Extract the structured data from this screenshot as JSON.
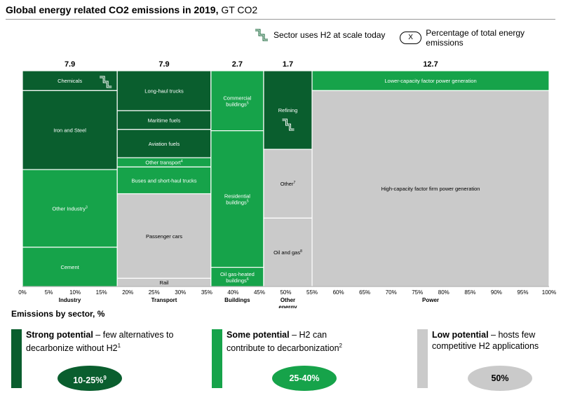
{
  "title": {
    "bold": "Global energy related CO2 emissions in 2019,",
    "rest": " GT CO2"
  },
  "legend": {
    "h2_label": "Sector uses H2 at scale today",
    "pct_symbol": "X",
    "pct_label": "Percentage of total energy emissions"
  },
  "colors": {
    "dark": "#0a5e2e",
    "mid": "#16a34a",
    "gray": "#cacaca"
  },
  "chart_data": {
    "type": "marimekko",
    "xlabel_title": "Emissions by sector, %",
    "x_ticks": [
      "0%",
      "5%",
      "10%",
      "15%",
      "20%",
      "25%",
      "30%",
      "35%",
      "40%",
      "45%",
      "50%",
      "55%",
      "60%",
      "65%",
      "70%",
      "75%",
      "80%",
      "85%",
      "90%",
      "95%",
      "100%"
    ],
    "columns": [
      {
        "name": "Industry",
        "total": "7.9",
        "x0": 0,
        "x1": 18,
        "segments": [
          {
            "label": "Chemicals",
            "share": 9.2,
            "potential": "strong",
            "h2": true
          },
          {
            "label": "Iron and Steel",
            "share": 36.6,
            "potential": "strong",
            "h2": false
          },
          {
            "label": "Other Industry",
            "sup": "3",
            "share": 36.0,
            "potential": "some",
            "h2": false
          },
          {
            "label": "Cement",
            "share": 18.2,
            "potential": "some",
            "h2": false
          }
        ]
      },
      {
        "name": "Transport",
        "total": "7.9",
        "x0": 18,
        "x1": 35.8,
        "segments": [
          {
            "label": "Long-haul trucks",
            "share": 18.5,
            "potential": "strong",
            "h2": false
          },
          {
            "label": "Maritime fuels",
            "share": 8.7,
            "potential": "strong",
            "h2": false
          },
          {
            "label": "Aviation fuels",
            "share": 13.1,
            "potential": "strong",
            "h2": false
          },
          {
            "label": "Other transport",
            "sup": "4",
            "share": 4.3,
            "potential": "some",
            "h2": false
          },
          {
            "label": "Buses and short-haul trucks",
            "share": 12.4,
            "potential": "some",
            "h2": false
          },
          {
            "label": "Passenger cars",
            "share": 39.2,
            "potential": "low",
            "h2": false
          },
          {
            "label": "Rail",
            "share": 3.8,
            "potential": "low",
            "h2": false
          }
        ]
      },
      {
        "name": "Buildings",
        "total": "2.7",
        "x0": 35.8,
        "x1": 45.8,
        "segments": [
          {
            "label": "Commercial buildings",
            "sup": "5",
            "share": 27.8,
            "potential": "some",
            "h2": false
          },
          {
            "label": "Residential buildings",
            "sup": "5",
            "share": 63.3,
            "potential": "some",
            "h2": false
          },
          {
            "label": "Oil gas-heated buildings",
            "sup": "6",
            "share": 8.9,
            "potential": "some",
            "h2": false
          }
        ]
      },
      {
        "name": "Other energy",
        "total": "1.7",
        "x0": 45.8,
        "x1": 55,
        "segments": [
          {
            "label": "Refining",
            "share": 36.4,
            "potential": "strong",
            "h2": true
          },
          {
            "label": "Other",
            "sup": "7",
            "share": 31.9,
            "potential": "low",
            "h2": false
          },
          {
            "label": "Oil and gas",
            "sup": "8",
            "share": 31.7,
            "potential": "low",
            "h2": false
          }
        ]
      },
      {
        "name": "Power",
        "total": "12.7",
        "x0": 55,
        "x1": 100,
        "segments": [
          {
            "label": "Lower-capacity factor power generation",
            "share": 9.2,
            "potential": "some",
            "h2": false
          },
          {
            "label": "High-capacity factor firm power generation",
            "share": 90.8,
            "potential": "low",
            "h2": false
          }
        ]
      }
    ]
  },
  "categories": [
    {
      "bold": "Strong potential",
      "rest": " – few alternatives to decarbonize without H2",
      "sup": "1",
      "oval": "10-25%",
      "oval_sup": "9"
    },
    {
      "bold": "Some potential",
      "rest": " – H2 can contribute to decarbonization",
      "sup": "2",
      "oval": "25-40%",
      "oval_sup": ""
    },
    {
      "bold": "Low potential",
      "rest": " – hosts few competitive H2 applications",
      "sup": "",
      "oval": "50%",
      "oval_sup": ""
    }
  ]
}
